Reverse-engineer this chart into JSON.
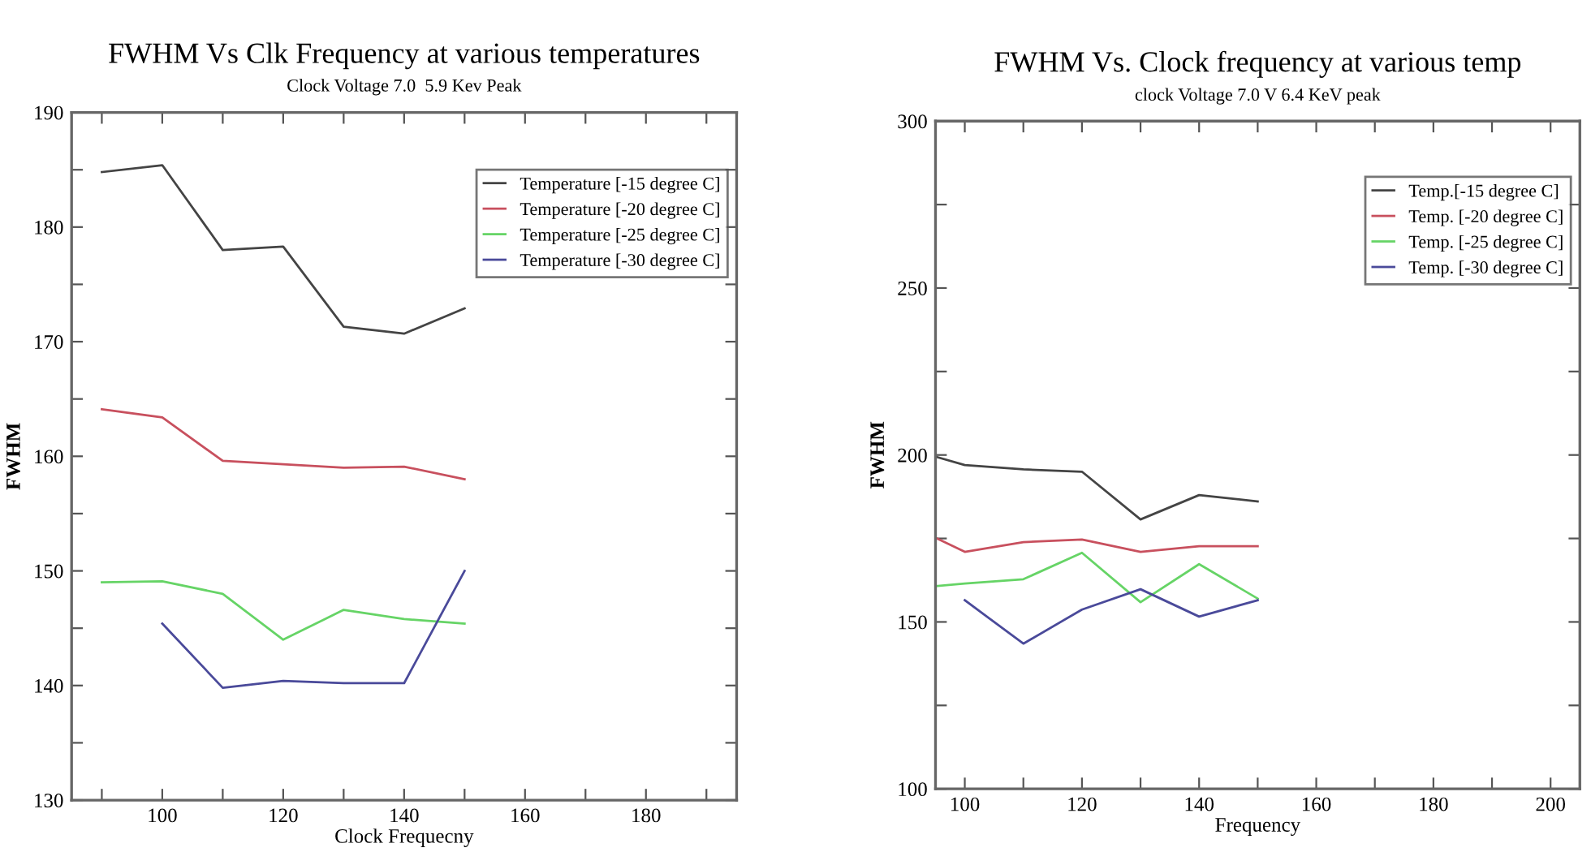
{
  "chart_data": [
    {
      "type": "line",
      "title": "FWHM Vs Clk Frequency at various temperatures",
      "subtitle": "Clock Voltage 7.0  5.9 Kev Peak",
      "xlabel": "Clock Frequecny",
      "ylabel": "FWHM",
      "xlim": [
        85,
        195
      ],
      "ylim": [
        130,
        190
      ],
      "xticks": [
        {
          "value": 90,
          "label": null
        },
        100,
        {
          "value": 110,
          "label": null
        },
        120,
        {
          "value": 130,
          "label": null
        },
        140,
        {
          "value": 150,
          "label": null
        },
        160,
        {
          "value": 170,
          "label": null
        },
        180,
        {
          "value": 190,
          "label": null
        }
      ],
      "yticks": [
        130,
        {
          "value": 135,
          "label": null
        },
        140,
        {
          "value": 145,
          "label": null
        },
        150,
        {
          "value": 155,
          "label": null
        },
        160,
        {
          "value": 165,
          "label": null
        },
        170,
        {
          "value": 175,
          "label": null
        },
        180,
        {
          "value": 185,
          "label": null
        },
        190
      ],
      "grid": false,
      "legend": "top right",
      "line_style": "solid",
      "marker": "none",
      "series": [
        {
          "name": "Temperature [-15 degree C]",
          "color": "#444444",
          "x": [
            90,
            100,
            110,
            120,
            130,
            140,
            150
          ],
          "values": [
            184.8,
            185.4,
            178,
            178.3,
            171.3,
            170.7,
            172.9
          ]
        },
        {
          "name": "Temperature [-20 degree C]",
          "color": "#c8505e",
          "x": [
            90,
            100,
            110,
            120,
            130,
            140,
            150
          ],
          "values": [
            164.1,
            163.4,
            159.6,
            159.3,
            159.0,
            159.1,
            158.0
          ]
        },
        {
          "name": "Temperature [-25 degree C]",
          "color": "#66d466",
          "x": [
            90,
            100,
            110,
            120,
            130,
            140,
            150
          ],
          "values": [
            149,
            149.1,
            148,
            144,
            146.6,
            145.8,
            145.4
          ]
        },
        {
          "name": "Temperature [-30 degree C]",
          "color": "#4a4a9a",
          "x": [
            100,
            110,
            120,
            130,
            140,
            150
          ],
          "values": [
            145.4,
            139.8,
            140.4,
            140.2,
            140.2,
            150
          ]
        }
      ]
    },
    {
      "type": "line",
      "title": "FWHM Vs. Clock frequency at various temp",
      "subtitle": "clock Voltage 7.0 V 6.4 KeV peak",
      "xlabel": "Frequency",
      "ylabel": "FWHM",
      "xlim": [
        95,
        205
      ],
      "ylim": [
        100,
        300
      ],
      "xticks": [
        100,
        {
          "value": 110,
          "label": null
        },
        120,
        {
          "value": 130,
          "label": null
        },
        140,
        {
          "value": 150,
          "label": null
        },
        160,
        {
          "value": 170,
          "label": null
        },
        180,
        {
          "value": 190,
          "label": null
        },
        200
      ],
      "yticks": [
        100,
        {
          "value": 125,
          "label": null
        },
        150,
        {
          "value": 175,
          "label": null
        },
        200,
        {
          "value": 225,
          "label": null
        },
        250,
        {
          "value": 275,
          "label": null
        },
        300
      ],
      "grid": false,
      "legend": "top right",
      "line_style": "solid",
      "marker": "none",
      "series": [
        {
          "name": "Temp.[-15 degree C]",
          "color": "#444444",
          "x": [
            95,
            100,
            110,
            120,
            130,
            140,
            150
          ],
          "values": [
            199.5,
            197,
            195.7,
            195,
            180.7,
            188,
            186.1
          ]
        },
        {
          "name": "Temp. [-20 degree C]",
          "color": "#c8505e",
          "x": [
            95,
            100,
            110,
            120,
            130,
            140,
            150
          ],
          "values": [
            175.2,
            171,
            173.9,
            174.7,
            171,
            172.7,
            172.7
          ]
        },
        {
          "name": "Temp. [-25 degree C]",
          "color": "#66d466",
          "x": [
            95,
            100,
            110,
            120,
            130,
            140,
            150
          ],
          "values": [
            160.7,
            161.5,
            162.8,
            170.7,
            155.9,
            167.3,
            157
          ]
        },
        {
          "name": "Temp. [-30 degree C]",
          "color": "#4a4a9a",
          "x": [
            100,
            110,
            120,
            130,
            140,
            150
          ],
          "values": [
            156.5,
            143.5,
            153.7,
            159.8,
            151.6,
            156.5
          ]
        }
      ]
    }
  ]
}
